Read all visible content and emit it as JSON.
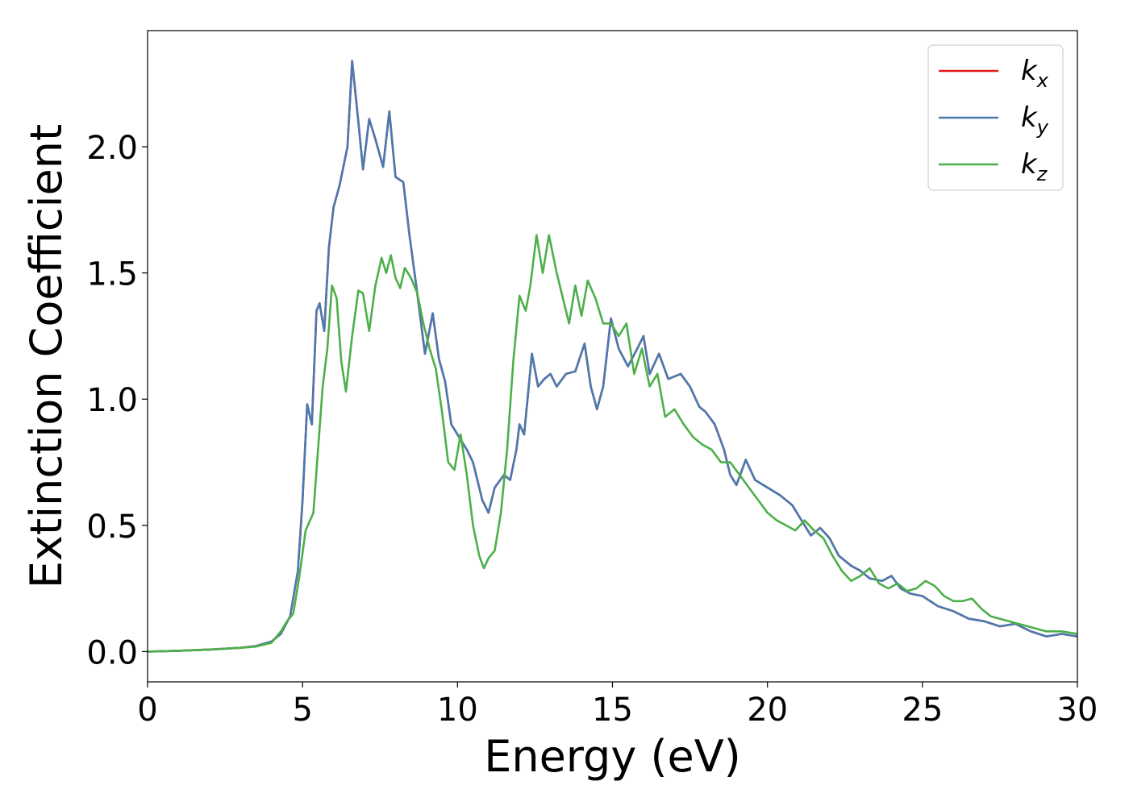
{
  "chart_data": {
    "type": "line",
    "xlabel": "Energy (eV)",
    "ylabel": "Extinction Coefficient",
    "xlim": [
      0,
      30
    ],
    "ylim": [
      -0.12,
      2.46
    ],
    "xticks": [
      0,
      5,
      10,
      15,
      20,
      25,
      30
    ],
    "xtick_labels": [
      "0",
      "5",
      "10",
      "15",
      "20",
      "25",
      "30"
    ],
    "yticks": [
      0.0,
      0.5,
      1.0,
      1.5,
      2.0
    ],
    "ytick_labels": [
      "0.0",
      "0.5",
      "1.0",
      "1.5",
      "2.0"
    ],
    "grid": false,
    "legend_position": "top-right",
    "series": [
      {
        "name": "k",
        "subscript": "x",
        "color": "#e41a1c",
        "points": [
          [
            0,
            0
          ],
          [
            1,
            0.003
          ],
          [
            2,
            0.008
          ],
          [
            3,
            0.015
          ],
          [
            3.5,
            0.022
          ],
          [
            4,
            0.04
          ],
          [
            4.3,
            0.07
          ],
          [
            4.6,
            0.14
          ],
          [
            4.85,
            0.32
          ],
          [
            5.0,
            0.6
          ],
          [
            5.15,
            0.98
          ],
          [
            5.3,
            0.9
          ],
          [
            5.45,
            1.35
          ],
          [
            5.55,
            1.38
          ],
          [
            5.7,
            1.27
          ],
          [
            5.85,
            1.6
          ],
          [
            6.0,
            1.76
          ],
          [
            6.2,
            1.85
          ],
          [
            6.45,
            2.0
          ],
          [
            6.6,
            2.34
          ],
          [
            6.8,
            2.1
          ],
          [
            6.95,
            1.91
          ],
          [
            7.15,
            2.11
          ],
          [
            7.35,
            2.03
          ],
          [
            7.6,
            1.92
          ],
          [
            7.8,
            2.14
          ],
          [
            8.0,
            1.88
          ],
          [
            8.25,
            1.86
          ],
          [
            8.45,
            1.65
          ],
          [
            8.7,
            1.42
          ],
          [
            8.95,
            1.18
          ],
          [
            9.2,
            1.34
          ],
          [
            9.4,
            1.16
          ],
          [
            9.6,
            1.07
          ],
          [
            9.8,
            0.9
          ],
          [
            10.0,
            0.86
          ],
          [
            10.3,
            0.8
          ],
          [
            10.5,
            0.75
          ],
          [
            10.8,
            0.6
          ],
          [
            11.0,
            0.55
          ],
          [
            11.2,
            0.65
          ],
          [
            11.5,
            0.7
          ],
          [
            11.7,
            0.68
          ],
          [
            11.9,
            0.8
          ],
          [
            12.0,
            0.9
          ],
          [
            12.15,
            0.86
          ],
          [
            12.4,
            1.18
          ],
          [
            12.6,
            1.05
          ],
          [
            12.8,
            1.08
          ],
          [
            13.0,
            1.1
          ],
          [
            13.2,
            1.05
          ],
          [
            13.5,
            1.1
          ],
          [
            13.8,
            1.11
          ],
          [
            14.1,
            1.22
          ],
          [
            14.3,
            1.05
          ],
          [
            14.5,
            0.96
          ],
          [
            14.7,
            1.05
          ],
          [
            14.95,
            1.32
          ],
          [
            15.2,
            1.2
          ],
          [
            15.5,
            1.13
          ],
          [
            15.8,
            1.2
          ],
          [
            16.0,
            1.25
          ],
          [
            16.2,
            1.1
          ],
          [
            16.5,
            1.18
          ],
          [
            16.8,
            1.08
          ],
          [
            17.2,
            1.1
          ],
          [
            17.5,
            1.05
          ],
          [
            17.8,
            0.97
          ],
          [
            18.0,
            0.95
          ],
          [
            18.3,
            0.9
          ],
          [
            18.6,
            0.8
          ],
          [
            18.8,
            0.7
          ],
          [
            19.0,
            0.66
          ],
          [
            19.3,
            0.76
          ],
          [
            19.6,
            0.68
          ],
          [
            20.0,
            0.65
          ],
          [
            20.4,
            0.62
          ],
          [
            20.8,
            0.58
          ],
          [
            21.1,
            0.52
          ],
          [
            21.4,
            0.46
          ],
          [
            21.7,
            0.49
          ],
          [
            22.0,
            0.45
          ],
          [
            22.3,
            0.38
          ],
          [
            22.7,
            0.34
          ],
          [
            23.0,
            0.32
          ],
          [
            23.3,
            0.29
          ],
          [
            23.7,
            0.28
          ],
          [
            24.0,
            0.3
          ],
          [
            24.3,
            0.25
          ],
          [
            24.6,
            0.23
          ],
          [
            25.0,
            0.22
          ],
          [
            25.5,
            0.18
          ],
          [
            26.0,
            0.16
          ],
          [
            26.5,
            0.13
          ],
          [
            27.0,
            0.12
          ],
          [
            27.5,
            0.1
          ],
          [
            28.0,
            0.11
          ],
          [
            28.5,
            0.08
          ],
          [
            29.0,
            0.06
          ],
          [
            29.5,
            0.07
          ],
          [
            30.0,
            0.06
          ]
        ]
      },
      {
        "name": "k",
        "subscript": "y",
        "color": "#4a7ab0",
        "points": [
          [
            0,
            0
          ],
          [
            1,
            0.003
          ],
          [
            2,
            0.008
          ],
          [
            3,
            0.015
          ],
          [
            3.5,
            0.022
          ],
          [
            4,
            0.04
          ],
          [
            4.3,
            0.07
          ],
          [
            4.6,
            0.14
          ],
          [
            4.85,
            0.32
          ],
          [
            5.0,
            0.6
          ],
          [
            5.15,
            0.98
          ],
          [
            5.3,
            0.9
          ],
          [
            5.45,
            1.35
          ],
          [
            5.55,
            1.38
          ],
          [
            5.7,
            1.27
          ],
          [
            5.85,
            1.6
          ],
          [
            6.0,
            1.76
          ],
          [
            6.2,
            1.85
          ],
          [
            6.45,
            2.0
          ],
          [
            6.6,
            2.34
          ],
          [
            6.8,
            2.1
          ],
          [
            6.95,
            1.91
          ],
          [
            7.15,
            2.11
          ],
          [
            7.35,
            2.03
          ],
          [
            7.6,
            1.92
          ],
          [
            7.8,
            2.14
          ],
          [
            8.0,
            1.88
          ],
          [
            8.25,
            1.86
          ],
          [
            8.45,
            1.65
          ],
          [
            8.7,
            1.42
          ],
          [
            8.95,
            1.18
          ],
          [
            9.2,
            1.34
          ],
          [
            9.4,
            1.16
          ],
          [
            9.6,
            1.07
          ],
          [
            9.8,
            0.9
          ],
          [
            10.0,
            0.86
          ],
          [
            10.3,
            0.8
          ],
          [
            10.5,
            0.75
          ],
          [
            10.8,
            0.6
          ],
          [
            11.0,
            0.55
          ],
          [
            11.2,
            0.65
          ],
          [
            11.5,
            0.7
          ],
          [
            11.7,
            0.68
          ],
          [
            11.9,
            0.8
          ],
          [
            12.0,
            0.9
          ],
          [
            12.15,
            0.86
          ],
          [
            12.4,
            1.18
          ],
          [
            12.6,
            1.05
          ],
          [
            12.8,
            1.08
          ],
          [
            13.0,
            1.1
          ],
          [
            13.2,
            1.05
          ],
          [
            13.5,
            1.1
          ],
          [
            13.8,
            1.11
          ],
          [
            14.1,
            1.22
          ],
          [
            14.3,
            1.05
          ],
          [
            14.5,
            0.96
          ],
          [
            14.7,
            1.05
          ],
          [
            14.95,
            1.32
          ],
          [
            15.2,
            1.2
          ],
          [
            15.5,
            1.13
          ],
          [
            15.8,
            1.2
          ],
          [
            16.0,
            1.25
          ],
          [
            16.2,
            1.1
          ],
          [
            16.5,
            1.18
          ],
          [
            16.8,
            1.08
          ],
          [
            17.2,
            1.1
          ],
          [
            17.5,
            1.05
          ],
          [
            17.8,
            0.97
          ],
          [
            18.0,
            0.95
          ],
          [
            18.3,
            0.9
          ],
          [
            18.6,
            0.8
          ],
          [
            18.8,
            0.7
          ],
          [
            19.0,
            0.66
          ],
          [
            19.3,
            0.76
          ],
          [
            19.6,
            0.68
          ],
          [
            20.0,
            0.65
          ],
          [
            20.4,
            0.62
          ],
          [
            20.8,
            0.58
          ],
          [
            21.1,
            0.52
          ],
          [
            21.4,
            0.46
          ],
          [
            21.7,
            0.49
          ],
          [
            22.0,
            0.45
          ],
          [
            22.3,
            0.38
          ],
          [
            22.7,
            0.34
          ],
          [
            23.0,
            0.32
          ],
          [
            23.3,
            0.29
          ],
          [
            23.7,
            0.28
          ],
          [
            24.0,
            0.3
          ],
          [
            24.3,
            0.25
          ],
          [
            24.6,
            0.23
          ],
          [
            25.0,
            0.22
          ],
          [
            25.5,
            0.18
          ],
          [
            26.0,
            0.16
          ],
          [
            26.5,
            0.13
          ],
          [
            27.0,
            0.12
          ],
          [
            27.5,
            0.1
          ],
          [
            28.0,
            0.11
          ],
          [
            28.5,
            0.08
          ],
          [
            29.0,
            0.06
          ],
          [
            29.5,
            0.07
          ],
          [
            30.0,
            0.06
          ]
        ]
      },
      {
        "name": "k",
        "subscript": "z",
        "color": "#4daf4a",
        "points": [
          [
            0,
            0
          ],
          [
            1,
            0.003
          ],
          [
            2,
            0.008
          ],
          [
            3,
            0.015
          ],
          [
            3.5,
            0.02
          ],
          [
            4,
            0.035
          ],
          [
            4.3,
            0.08
          ],
          [
            4.5,
            0.12
          ],
          [
            4.7,
            0.15
          ],
          [
            4.9,
            0.3
          ],
          [
            5.1,
            0.48
          ],
          [
            5.35,
            0.55
          ],
          [
            5.5,
            0.8
          ],
          [
            5.65,
            1.05
          ],
          [
            5.8,
            1.2
          ],
          [
            5.95,
            1.45
          ],
          [
            6.1,
            1.4
          ],
          [
            6.25,
            1.15
          ],
          [
            6.4,
            1.03
          ],
          [
            6.6,
            1.25
          ],
          [
            6.8,
            1.43
          ],
          [
            6.95,
            1.42
          ],
          [
            7.15,
            1.27
          ],
          [
            7.35,
            1.45
          ],
          [
            7.55,
            1.56
          ],
          [
            7.7,
            1.5
          ],
          [
            7.85,
            1.57
          ],
          [
            8.0,
            1.48
          ],
          [
            8.15,
            1.44
          ],
          [
            8.3,
            1.52
          ],
          [
            8.5,
            1.48
          ],
          [
            8.7,
            1.42
          ],
          [
            8.9,
            1.3
          ],
          [
            9.1,
            1.2
          ],
          [
            9.3,
            1.12
          ],
          [
            9.5,
            0.95
          ],
          [
            9.7,
            0.75
          ],
          [
            9.9,
            0.72
          ],
          [
            10.1,
            0.86
          ],
          [
            10.3,
            0.7
          ],
          [
            10.5,
            0.5
          ],
          [
            10.7,
            0.38
          ],
          [
            10.85,
            0.33
          ],
          [
            11.0,
            0.37
          ],
          [
            11.2,
            0.4
          ],
          [
            11.4,
            0.55
          ],
          [
            11.6,
            0.8
          ],
          [
            11.8,
            1.15
          ],
          [
            12.0,
            1.41
          ],
          [
            12.2,
            1.35
          ],
          [
            12.35,
            1.45
          ],
          [
            12.55,
            1.65
          ],
          [
            12.75,
            1.5
          ],
          [
            12.95,
            1.65
          ],
          [
            13.2,
            1.5
          ],
          [
            13.4,
            1.4
          ],
          [
            13.6,
            1.3
          ],
          [
            13.8,
            1.45
          ],
          [
            14.0,
            1.33
          ],
          [
            14.2,
            1.47
          ],
          [
            14.45,
            1.4
          ],
          [
            14.7,
            1.3
          ],
          [
            14.95,
            1.3
          ],
          [
            15.2,
            1.25
          ],
          [
            15.45,
            1.3
          ],
          [
            15.7,
            1.1
          ],
          [
            15.95,
            1.2
          ],
          [
            16.2,
            1.05
          ],
          [
            16.45,
            1.1
          ],
          [
            16.7,
            0.93
          ],
          [
            17.0,
            0.96
          ],
          [
            17.3,
            0.9
          ],
          [
            17.6,
            0.85
          ],
          [
            17.9,
            0.82
          ],
          [
            18.2,
            0.8
          ],
          [
            18.5,
            0.75
          ],
          [
            18.8,
            0.75
          ],
          [
            19.1,
            0.7
          ],
          [
            19.4,
            0.65
          ],
          [
            19.7,
            0.6
          ],
          [
            20.0,
            0.55
          ],
          [
            20.3,
            0.52
          ],
          [
            20.6,
            0.5
          ],
          [
            20.9,
            0.48
          ],
          [
            21.2,
            0.52
          ],
          [
            21.5,
            0.48
          ],
          [
            21.8,
            0.45
          ],
          [
            22.1,
            0.38
          ],
          [
            22.4,
            0.32
          ],
          [
            22.7,
            0.28
          ],
          [
            23.0,
            0.3
          ],
          [
            23.3,
            0.33
          ],
          [
            23.6,
            0.27
          ],
          [
            23.9,
            0.25
          ],
          [
            24.2,
            0.27
          ],
          [
            24.5,
            0.24
          ],
          [
            24.8,
            0.25
          ],
          [
            25.1,
            0.28
          ],
          [
            25.4,
            0.26
          ],
          [
            25.7,
            0.22
          ],
          [
            26.0,
            0.2
          ],
          [
            26.3,
            0.2
          ],
          [
            26.6,
            0.21
          ],
          [
            26.9,
            0.17
          ],
          [
            27.2,
            0.14
          ],
          [
            27.5,
            0.13
          ],
          [
            27.8,
            0.12
          ],
          [
            28.1,
            0.11
          ],
          [
            28.4,
            0.1
          ],
          [
            28.7,
            0.09
          ],
          [
            29.0,
            0.08
          ],
          [
            29.5,
            0.08
          ],
          [
            30.0,
            0.07
          ]
        ]
      }
    ]
  }
}
